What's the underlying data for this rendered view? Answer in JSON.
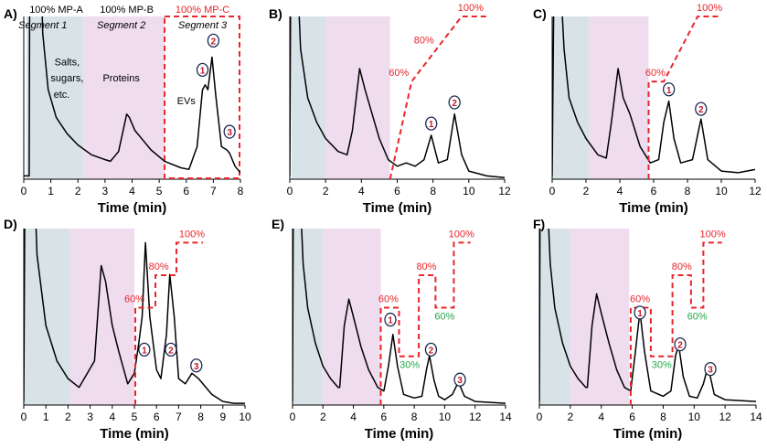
{
  "colors": {
    "trace": "#000000",
    "segment1": "#d8e3e8",
    "segment2": "#efdcef",
    "gradient": "#e8262c",
    "gradient_down": "#22a84a",
    "peak_circle": "#1a2a50",
    "peak_number": "#c0182a"
  },
  "chart_data": [
    {
      "panel": "A)",
      "type": "line",
      "xlabel": "Time (min)",
      "xlim": [
        0,
        8
      ],
      "xticks": [
        "0",
        "1",
        "2",
        "3",
        "4",
        "5",
        "6",
        "7",
        "8"
      ],
      "shading": [
        [
          0.1,
          2.2
        ],
        [
          2.2,
          5.2
        ]
      ],
      "header_labels": [
        {
          "text": "100% MP-A",
          "t": 1.2,
          "color": "#000000"
        },
        {
          "text": "100% MP-B",
          "t": 3.8,
          "color": "#000000"
        },
        {
          "text": "100% MP-C",
          "t": 6.6,
          "color": "#e8262c"
        }
      ],
      "annotations": [
        {
          "text": "Segment 1",
          "t": 0.7,
          "y": 0.9,
          "italic": true
        },
        {
          "text": "Segment 2",
          "t": 3.6,
          "y": 0.9,
          "italic": true
        },
        {
          "text": "Segment 3",
          "t": 6.6,
          "y": 0.9,
          "italic": true
        },
        {
          "text": "Salts,",
          "t": 1.6,
          "y": 0.7
        },
        {
          "text": "sugars,",
          "t": 1.6,
          "y": 0.6
        },
        {
          "text": "etc.",
          "t": 1.4,
          "y": 0.5
        },
        {
          "text": "Proteins",
          "t": 3.6,
          "y": 0.6
        },
        {
          "text": "EVs",
          "t": 6.0,
          "y": 0.46
        }
      ],
      "segment3_box": [
        5.2,
        8
      ],
      "trace": [
        [
          0,
          0.02
        ],
        [
          0.2,
          0.02
        ],
        [
          0.22,
          1.2
        ],
        [
          0.65,
          1.2
        ],
        [
          0.7,
          0.9
        ],
        [
          0.9,
          0.55
        ],
        [
          1.2,
          0.38
        ],
        [
          1.6,
          0.28
        ],
        [
          2,
          0.21
        ],
        [
          2.5,
          0.15
        ],
        [
          3,
          0.12
        ],
        [
          3.2,
          0.11
        ],
        [
          3.5,
          0.17
        ],
        [
          3.8,
          0.4
        ],
        [
          3.9,
          0.38
        ],
        [
          4.1,
          0.3
        ],
        [
          4.4,
          0.24
        ],
        [
          4.7,
          0.18
        ],
        [
          5.2,
          0.11
        ],
        [
          5.8,
          0.07
        ],
        [
          6.1,
          0.06
        ],
        [
          6.4,
          0.2
        ],
        [
          6.6,
          0.55
        ],
        [
          6.7,
          0.58
        ],
        [
          6.8,
          0.55
        ],
        [
          6.95,
          0.75
        ],
        [
          7.1,
          0.5
        ],
        [
          7.3,
          0.2
        ],
        [
          7.5,
          0.18
        ],
        [
          7.6,
          0.16
        ],
        [
          7.8,
          0.08
        ],
        [
          8,
          0.04
        ]
      ],
      "peaks": [
        {
          "label": "1",
          "t": 6.6,
          "y": 0.7
        },
        {
          "label": "2",
          "t": 7.0,
          "y": 0.88
        },
        {
          "label": "3",
          "t": 7.6,
          "y": 0.32
        }
      ],
      "gradient": [],
      "gradient_labels": []
    },
    {
      "panel": "B)",
      "type": "line",
      "xlabel": "Time (min)",
      "xlim": [
        0,
        12
      ],
      "xticks": [
        "0",
        "2",
        "4",
        "6",
        "8",
        "10",
        "12"
      ],
      "shading": [
        [
          0.1,
          2.0
        ],
        [
          2.0,
          5.6
        ]
      ],
      "trace": [
        [
          0,
          0.02
        ],
        [
          0.05,
          1.2
        ],
        [
          0.45,
          1.2
        ],
        [
          0.6,
          0.8
        ],
        [
          1,
          0.5
        ],
        [
          1.5,
          0.35
        ],
        [
          2,
          0.25
        ],
        [
          2.7,
          0.17
        ],
        [
          3.2,
          0.15
        ],
        [
          3.5,
          0.3
        ],
        [
          3.9,
          0.68
        ],
        [
          4.2,
          0.55
        ],
        [
          4.6,
          0.4
        ],
        [
          5,
          0.25
        ],
        [
          5.5,
          0.12
        ],
        [
          6,
          0.08
        ],
        [
          6.5,
          0.1
        ],
        [
          7,
          0.08
        ],
        [
          7.5,
          0.12
        ],
        [
          7.9,
          0.27
        ],
        [
          8.3,
          0.1
        ],
        [
          8.8,
          0.12
        ],
        [
          9.2,
          0.4
        ],
        [
          9.6,
          0.15
        ],
        [
          10,
          0.05
        ],
        [
          11,
          0.02
        ],
        [
          12,
          0.01
        ]
      ],
      "peaks": [
        {
          "label": "1",
          "t": 7.9,
          "y": 0.37
        },
        {
          "label": "2",
          "t": 9.2,
          "y": 0.5
        }
      ],
      "gradient": [
        [
          5.6,
          0
        ],
        [
          6.8,
          60
        ],
        [
          8.2,
          80
        ],
        [
          9.6,
          100
        ],
        [
          11,
          100
        ]
      ],
      "gradient_labels": [
        {
          "text": "60%",
          "t": 6.6,
          "pct": 60,
          "color": "#e8262c",
          "dx": -10
        },
        {
          "text": "80%",
          "t": 7.8,
          "pct": 80,
          "color": "#e8262c",
          "dx": -6
        },
        {
          "text": "100%",
          "t": 10.1,
          "pct": 100,
          "color": "#e8262c",
          "dx": 0
        }
      ]
    },
    {
      "panel": "C)",
      "type": "line",
      "xlabel": "Time (min)",
      "xlim": [
        0,
        12
      ],
      "xticks": [
        "0",
        "2",
        "4",
        "6",
        "8",
        "10",
        "12"
      ],
      "shading": [
        [
          0,
          2.2
        ],
        [
          2.2,
          5.7
        ]
      ],
      "trace": [
        [
          0,
          0.02
        ],
        [
          0.1,
          1.2
        ],
        [
          0.5,
          1.2
        ],
        [
          0.7,
          0.8
        ],
        [
          1,
          0.5
        ],
        [
          1.5,
          0.35
        ],
        [
          2,
          0.25
        ],
        [
          2.7,
          0.15
        ],
        [
          3.2,
          0.13
        ],
        [
          3.5,
          0.35
        ],
        [
          3.9,
          0.68
        ],
        [
          4.2,
          0.5
        ],
        [
          4.6,
          0.4
        ],
        [
          5.2,
          0.2
        ],
        [
          5.8,
          0.1
        ],
        [
          6.3,
          0.12
        ],
        [
          6.6,
          0.35
        ],
        [
          6.9,
          0.48
        ],
        [
          7.2,
          0.25
        ],
        [
          7.6,
          0.1
        ],
        [
          8.3,
          0.12
        ],
        [
          8.8,
          0.37
        ],
        [
          9.2,
          0.12
        ],
        [
          10,
          0.05
        ],
        [
          11,
          0.04
        ],
        [
          12,
          0.06
        ]
      ],
      "peaks": [
        {
          "label": "1",
          "t": 6.9,
          "y": 0.58
        },
        {
          "label": "2",
          "t": 8.8,
          "y": 0.46
        }
      ],
      "gradient": [
        [
          5.7,
          0
        ],
        [
          5.7,
          60
        ],
        [
          6.6,
          60
        ],
        [
          8.6,
          100
        ],
        [
          10,
          100
        ]
      ],
      "gradient_labels": [
        {
          "text": "60%",
          "t": 6.1,
          "pct": 60,
          "color": "#e8262c",
          "dx": 0
        },
        {
          "text": "100%",
          "t": 9.3,
          "pct": 100,
          "color": "#e8262c",
          "dx": 0
        }
      ]
    },
    {
      "panel": "D)",
      "type": "line",
      "xlabel": "Time (min)",
      "xlim": [
        0,
        10
      ],
      "xticks": [
        "0",
        "1",
        "2",
        "3",
        "4",
        "5",
        "6",
        "7",
        "8",
        "9",
        "10"
      ],
      "shading": [
        [
          0,
          2.1
        ],
        [
          2.1,
          5.0
        ]
      ],
      "trace": [
        [
          0,
          0.02
        ],
        [
          0.05,
          1.2
        ],
        [
          0.5,
          1.2
        ],
        [
          0.6,
          0.85
        ],
        [
          1,
          0.45
        ],
        [
          1.5,
          0.25
        ],
        [
          2,
          0.15
        ],
        [
          2.5,
          0.1
        ],
        [
          3.2,
          0.25
        ],
        [
          3.5,
          0.79
        ],
        [
          3.7,
          0.7
        ],
        [
          4,
          0.45
        ],
        [
          4.3,
          0.3
        ],
        [
          4.7,
          0.12
        ],
        [
          5,
          0.18
        ],
        [
          5.2,
          0.35
        ],
        [
          5.35,
          0.5
        ],
        [
          5.5,
          0.92
        ],
        [
          5.7,
          0.5
        ],
        [
          6,
          0.2
        ],
        [
          6.2,
          0.15
        ],
        [
          6.45,
          0.4
        ],
        [
          6.6,
          0.74
        ],
        [
          6.8,
          0.5
        ],
        [
          7,
          0.15
        ],
        [
          7.3,
          0.12
        ],
        [
          7.6,
          0.18
        ],
        [
          7.9,
          0.15
        ],
        [
          8.5,
          0.06
        ],
        [
          9,
          0.02
        ],
        [
          9.5,
          0.01
        ],
        [
          10,
          0.01
        ]
      ],
      "peaks": [
        {
          "label": "1",
          "t": 5.45,
          "y": 0.34
        },
        {
          "label": "2",
          "t": 6.65,
          "y": 0.34
        },
        {
          "label": "3",
          "t": 7.8,
          "y": 0.25
        }
      ],
      "gradient": [
        [
          5.04,
          0
        ],
        [
          5.04,
          60
        ],
        [
          5.95,
          60
        ],
        [
          5.95,
          80
        ],
        [
          6.9,
          80
        ],
        [
          6.9,
          100
        ],
        [
          8.1,
          100
        ]
      ],
      "gradient_labels": [
        {
          "text": "60%",
          "t": 5.0,
          "pct": 60,
          "color": "#e8262c",
          "dx": 0
        },
        {
          "text": "80%",
          "t": 6.1,
          "pct": 80,
          "color": "#e8262c",
          "dx": 0
        },
        {
          "text": "100%",
          "t": 7.6,
          "pct": 100,
          "color": "#e8262c",
          "dx": 0
        }
      ]
    },
    {
      "panel": "E)",
      "type": "line",
      "xlabel": "Time (min)",
      "xlim": [
        0,
        14
      ],
      "xticks": [
        "0",
        "2",
        "4",
        "6",
        "8",
        "10",
        "12",
        "14"
      ],
      "shading": [
        [
          0,
          2.0
        ],
        [
          2.0,
          5.8
        ]
      ],
      "trace": [
        [
          0,
          0.02
        ],
        [
          0.05,
          1.2
        ],
        [
          0.5,
          1.2
        ],
        [
          0.7,
          0.8
        ],
        [
          1,
          0.55
        ],
        [
          1.5,
          0.35
        ],
        [
          2,
          0.22
        ],
        [
          2.5,
          0.15
        ],
        [
          3,
          0.1
        ],
        [
          3.1,
          0.1
        ],
        [
          3.4,
          0.45
        ],
        [
          3.7,
          0.6
        ],
        [
          4,
          0.5
        ],
        [
          4.5,
          0.33
        ],
        [
          5,
          0.2
        ],
        [
          5.6,
          0.1
        ],
        [
          6,
          0.08
        ],
        [
          6.3,
          0.22
        ],
        [
          6.6,
          0.4
        ],
        [
          6.9,
          0.22
        ],
        [
          7.3,
          0.06
        ],
        [
          8,
          0.04
        ],
        [
          8.5,
          0.05
        ],
        [
          8.8,
          0.2
        ],
        [
          9,
          0.28
        ],
        [
          9.3,
          0.14
        ],
        [
          9.6,
          0.05
        ],
        [
          10,
          0.03
        ],
        [
          10.5,
          0.06
        ],
        [
          10.9,
          0.13
        ],
        [
          11.3,
          0.05
        ],
        [
          12,
          0.02
        ],
        [
          14,
          0.01
        ]
      ],
      "peaks": [
        {
          "label": "1",
          "t": 6.43,
          "y": 0.51
        },
        {
          "label": "2",
          "t": 9.1,
          "y": 0.34
        },
        {
          "label": "3",
          "t": 11.0,
          "y": 0.17
        }
      ],
      "gradient": [
        [
          5.8,
          0
        ],
        [
          5.8,
          60
        ],
        [
          7,
          60
        ],
        [
          7,
          30
        ],
        [
          8.3,
          30
        ],
        [
          8.3,
          80
        ],
        [
          9.4,
          80
        ],
        [
          9.4,
          60
        ],
        [
          10.6,
          60
        ],
        [
          10.6,
          100
        ],
        [
          11.7,
          100
        ]
      ],
      "gradient_labels": [
        {
          "text": "60%",
          "t": 6.3,
          "pct": 60,
          "color": "#e8262c",
          "dx": 0
        },
        {
          "text": "30%",
          "t": 7.7,
          "pct": 30,
          "color": "#22a84a",
          "dx": 0,
          "below": true
        },
        {
          "text": "80%",
          "t": 8.8,
          "pct": 80,
          "color": "#e8262c",
          "dx": 0
        },
        {
          "text": "60%",
          "t": 10.0,
          "pct": 60,
          "color": "#22a84a",
          "dx": 0,
          "below": true
        },
        {
          "text": "100%",
          "t": 11.1,
          "pct": 100,
          "color": "#e8262c",
          "dx": 0
        }
      ]
    },
    {
      "panel": "F)",
      "type": "line",
      "xlabel": "Time (min)",
      "xlim": [
        0,
        14
      ],
      "xticks": [
        "0",
        "2",
        "4",
        "6",
        "8",
        "10",
        "12",
        "14"
      ],
      "shading": [
        [
          0,
          2.0
        ],
        [
          2.0,
          5.8
        ]
      ],
      "trace": [
        [
          0,
          0.02
        ],
        [
          0.05,
          1.2
        ],
        [
          0.5,
          1.2
        ],
        [
          0.7,
          0.8
        ],
        [
          1,
          0.55
        ],
        [
          1.5,
          0.35
        ],
        [
          2,
          0.22
        ],
        [
          2.5,
          0.15
        ],
        [
          3,
          0.1
        ],
        [
          3.1,
          0.1
        ],
        [
          3.4,
          0.45
        ],
        [
          3.7,
          0.63
        ],
        [
          4,
          0.52
        ],
        [
          4.5,
          0.35
        ],
        [
          5,
          0.2
        ],
        [
          5.5,
          0.1
        ],
        [
          5.9,
          0.08
        ],
        [
          6.2,
          0.3
        ],
        [
          6.5,
          0.53
        ],
        [
          6.8,
          0.3
        ],
        [
          7.2,
          0.08
        ],
        [
          8,
          0.05
        ],
        [
          8.5,
          0.08
        ],
        [
          8.8,
          0.28
        ],
        [
          9.0,
          0.34
        ],
        [
          9.3,
          0.16
        ],
        [
          9.7,
          0.05
        ],
        [
          10.2,
          0.04
        ],
        [
          10.6,
          0.12
        ],
        [
          10.9,
          0.22
        ],
        [
          11.3,
          0.06
        ],
        [
          12,
          0.03
        ],
        [
          14,
          0.02
        ]
      ],
      "peaks": [
        {
          "label": "1",
          "t": 6.5,
          "y": 0.55
        },
        {
          "label": "2",
          "t": 9.1,
          "y": 0.37
        },
        {
          "label": "3",
          "t": 11.05,
          "y": 0.23
        }
      ],
      "gradient": [
        [
          5.9,
          0
        ],
        [
          5.9,
          60
        ],
        [
          7.2,
          60
        ],
        [
          7.2,
          30
        ],
        [
          8.6,
          30
        ],
        [
          8.6,
          80
        ],
        [
          9.8,
          80
        ],
        [
          9.8,
          60
        ],
        [
          10.6,
          60
        ],
        [
          10.6,
          100
        ],
        [
          11.8,
          100
        ]
      ],
      "gradient_labels": [
        {
          "text": "60%",
          "t": 6.5,
          "pct": 60,
          "color": "#e8262c",
          "dx": 0
        },
        {
          "text": "30%",
          "t": 7.9,
          "pct": 30,
          "color": "#22a84a",
          "dx": 0,
          "below": true
        },
        {
          "text": "80%",
          "t": 9.2,
          "pct": 80,
          "color": "#e8262c",
          "dx": 0
        },
        {
          "text": "60%",
          "t": 10.2,
          "pct": 60,
          "color": "#22a84a",
          "dx": 0,
          "below": true
        },
        {
          "text": "100%",
          "t": 11.2,
          "pct": 100,
          "color": "#e8262c",
          "dx": 0
        }
      ]
    }
  ]
}
